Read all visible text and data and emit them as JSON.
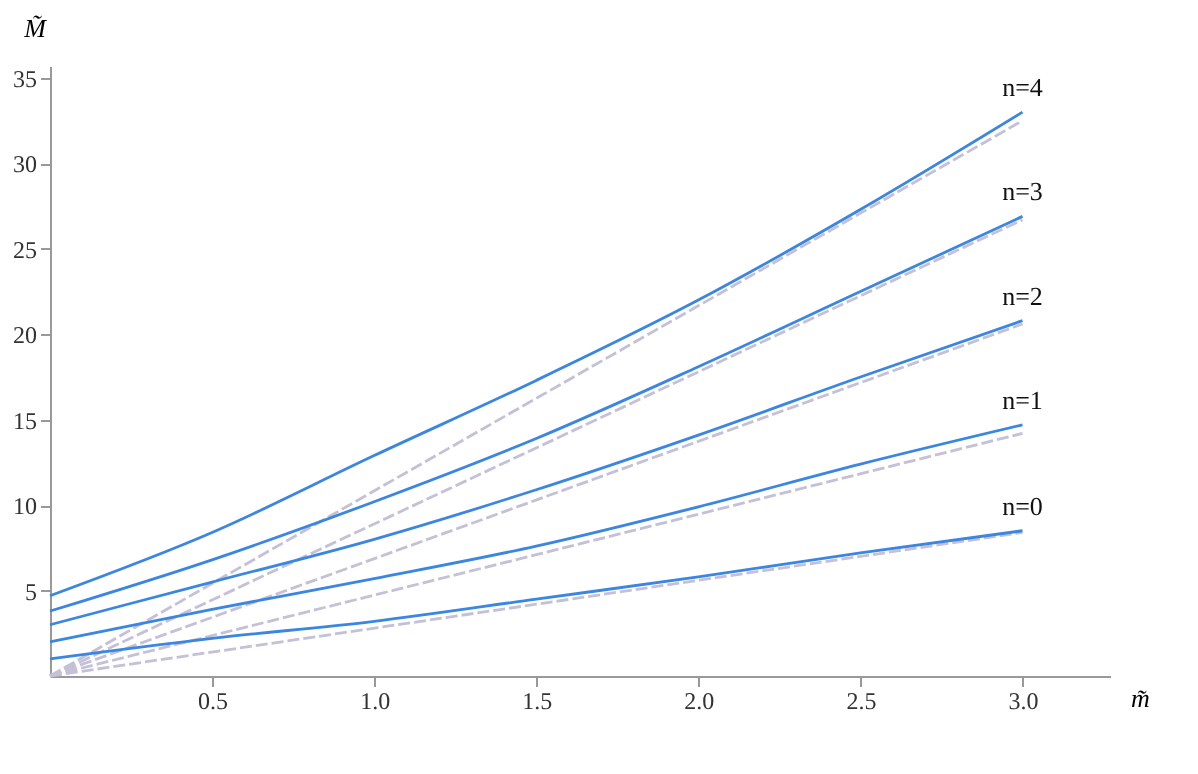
{
  "chart_data": {
    "type": "line",
    "xlabel": "m̃",
    "ylabel": "M̃",
    "xlim": [
      0,
      3.27
    ],
    "ylim": [
      0,
      35.7
    ],
    "xticks": [
      {
        "value": 0.5,
        "label": "0.5"
      },
      {
        "value": 1,
        "label": "1.0"
      },
      {
        "value": 1.5,
        "label": "1.5"
      },
      {
        "value": 2,
        "label": "2.0"
      },
      {
        "value": 2.5,
        "label": "2.5"
      },
      {
        "value": 3,
        "label": "3.0"
      }
    ],
    "yticks": [
      5,
      10,
      15,
      20,
      25,
      30,
      35
    ],
    "grid": false,
    "legend": false,
    "series": [
      {
        "name": "n=4",
        "color": "#3a86e0",
        "x": [
          0,
          0.5,
          1,
          1.5,
          2,
          2.5,
          3
        ],
        "values": [
          4.7,
          8.4,
          12.9,
          17.3,
          22.0,
          27.3,
          33.0
        ]
      },
      {
        "name": "n=3",
        "color": "#3a86e0",
        "x": [
          0,
          0.5,
          1,
          1.5,
          2,
          2.5,
          3
        ],
        "values": [
          3.8,
          6.8,
          10.2,
          13.9,
          18.1,
          22.5,
          26.9
        ]
      },
      {
        "name": "n=2",
        "color": "#3a86e0",
        "x": [
          0,
          0.5,
          1,
          1.5,
          2,
          2.5,
          3
        ],
        "values": [
          3.0,
          5.5,
          8.0,
          10.9,
          14.1,
          17.5,
          20.8
        ]
      },
      {
        "name": "n=1",
        "color": "#3a86e0",
        "x": [
          0,
          0.5,
          1,
          1.5,
          2,
          2.5,
          3
        ],
        "values": [
          2.0,
          3.9,
          5.7,
          7.6,
          9.9,
          12.4,
          14.7
        ]
      },
      {
        "name": "n=0",
        "color": "#3a86e0",
        "x": [
          0,
          0.5,
          1,
          1.5,
          2,
          2.5,
          3
        ],
        "values": [
          1.0,
          2.2,
          3.2,
          4.5,
          5.8,
          7.2,
          8.5
        ]
      },
      {
        "color": "#c4c0d8",
        "line_style": "dashed",
        "x": [
          0,
          3
        ],
        "values": [
          0,
          32.5
        ]
      },
      {
        "color": "#c4c0d8",
        "line_style": "dashed",
        "x": [
          0,
          3
        ],
        "values": [
          0,
          26.7
        ]
      },
      {
        "color": "#c4c0d8",
        "line_style": "dashed",
        "x": [
          0,
          3
        ],
        "values": [
          0,
          20.6
        ]
      },
      {
        "color": "#c4c0d8",
        "line_style": "dashed",
        "x": [
          0,
          3
        ],
        "values": [
          0,
          14.2
        ]
      },
      {
        "color": "#c4c0d8",
        "line_style": "dashed",
        "x": [
          0,
          3
        ],
        "values": [
          0,
          8.4
        ]
      }
    ]
  }
}
